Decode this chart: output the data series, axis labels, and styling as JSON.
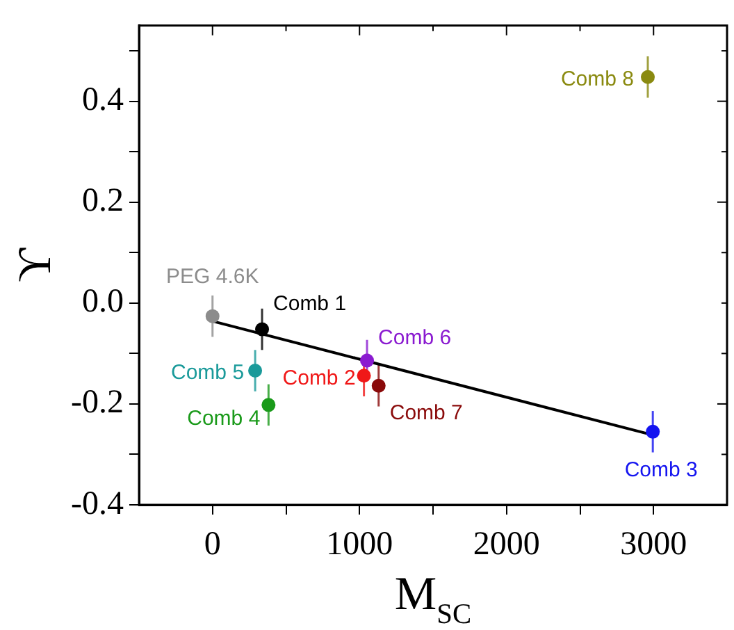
{
  "chart_data": {
    "type": "scatter",
    "xlabel": "M$_{SC}$",
    "ylabel": "ϒ",
    "marker": "circle",
    "grid": false,
    "legend": false,
    "xlim": [
      -500,
      3500
    ],
    "xticks": [
      0,
      {
        "value": 500,
        "label": null
      },
      1000,
      {
        "value": 1500,
        "label": null
      },
      2000,
      {
        "value": 2500,
        "label": null
      },
      3000
    ],
    "ylim": [
      -0.4,
      0.55
    ],
    "yticks": [
      -0.4,
      {
        "value": -0.3,
        "label": null
      },
      -0.2,
      {
        "value": -0.1,
        "label": null
      },
      {
        "value": 0,
        "label": "0.0"
      },
      {
        "value": 0.1,
        "label": null
      },
      0.2,
      {
        "value": 0.3,
        "label": null
      },
      0.4,
      {
        "value": 0.5,
        "label": null
      }
    ],
    "series": [
      {
        "name": "PEG 4.6K",
        "color": "#8c8c8c",
        "x": [
          0
        ],
        "values": [
          -0.026
        ],
        "errors": [
          0.041
        ]
      },
      {
        "name": "Comb 1",
        "color": "#000000",
        "x": [
          337
        ],
        "values": [
          -0.052
        ],
        "errors": [
          0.041
        ]
      },
      {
        "name": "Comb 5",
        "color": "#1a9a9a",
        "x": [
          290
        ],
        "values": [
          -0.134
        ],
        "errors": [
          0.041
        ]
      },
      {
        "name": "Comb 4",
        "color": "#1a9a1a",
        "x": [
          381
        ],
        "values": [
          -0.202
        ],
        "errors": [
          0.041
        ]
      },
      {
        "name": "Comb 6",
        "color": "#8a1ad0",
        "x": [
          1051
        ],
        "values": [
          -0.114
        ],
        "errors": [
          0.041
        ]
      },
      {
        "name": "Comb 2",
        "color": "#f01818",
        "x": [
          1030
        ],
        "values": [
          -0.144
        ],
        "errors": [
          0.041
        ]
      },
      {
        "name": "Comb 7",
        "color": "#8a0a0a",
        "x": [
          1130
        ],
        "values": [
          -0.164
        ],
        "errors": [
          0.041
        ]
      },
      {
        "name": "Comb 3",
        "color": "#1414f0",
        "x": [
          2995
        ],
        "values": [
          -0.255
        ],
        "errors": [
          0.041
        ]
      },
      {
        "name": "Comb 8",
        "color": "#8a8a10",
        "x": [
          2961
        ],
        "values": [
          0.448
        ],
        "errors": [
          0.041
        ]
      },
      {
        "type": "line",
        "marker": "none",
        "color": "#000000",
        "x": [
          0,
          3000
        ],
        "values": [
          -0.036,
          -0.262
        ]
      }
    ]
  }
}
